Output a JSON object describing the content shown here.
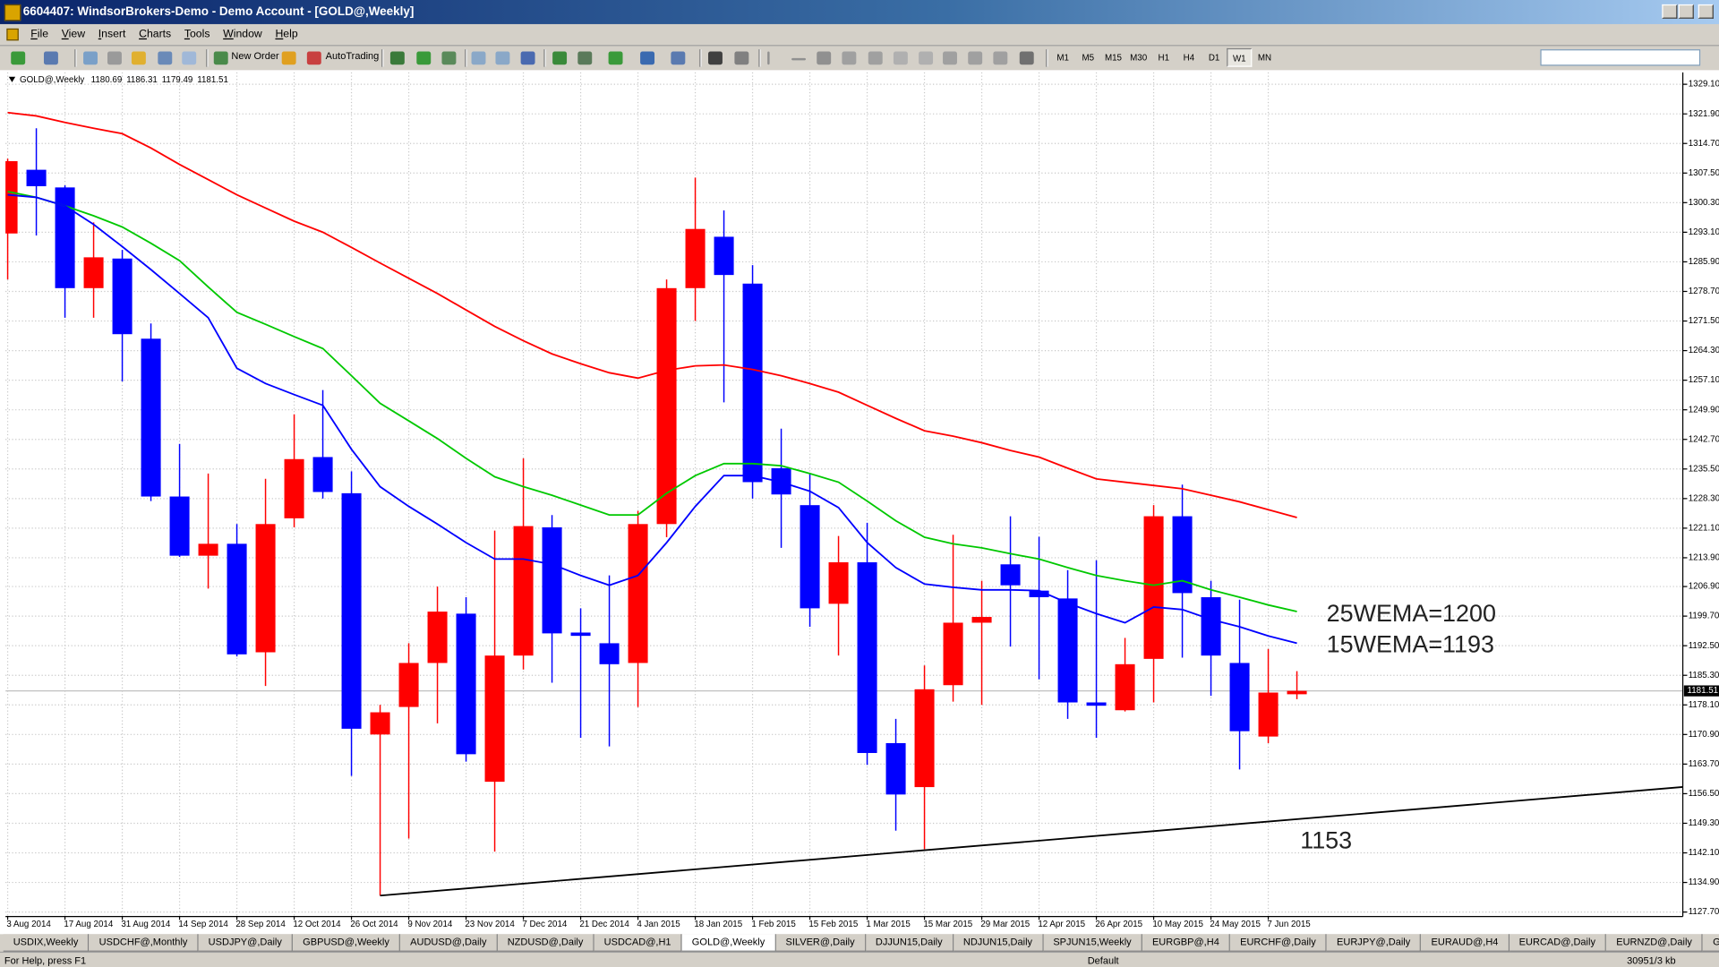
{
  "window": {
    "title": "6604407: WindsorBrokers-Demo - Demo Account - [GOLD@,Weekly]"
  },
  "menu": [
    "File",
    "View",
    "Insert",
    "Charts",
    "Tools",
    "Window",
    "Help"
  ],
  "toolbar": {
    "new_order": "New Order",
    "auto_trading": "AutoTrading",
    "timeframes": [
      {
        "label": "M1",
        "active": false
      },
      {
        "label": "M5",
        "active": false
      },
      {
        "label": "M15",
        "active": false
      },
      {
        "label": "M30",
        "active": false
      },
      {
        "label": "H1",
        "active": false
      },
      {
        "label": "H4",
        "active": false
      },
      {
        "label": "D1",
        "active": false
      },
      {
        "label": "W1",
        "active": true
      },
      {
        "label": "MN",
        "active": false
      }
    ]
  },
  "chart_data": {
    "type": "candlestick",
    "title": "GOLD@,Weekly",
    "categories": [
      "3 Aug 2014",
      null,
      "17 Aug 2014",
      null,
      "31 Aug 2014",
      null,
      "14 Sep 2014",
      null,
      "28 Sep 2014",
      null,
      "12 Oct 2014",
      null,
      "26 Oct 2014",
      null,
      "9 Nov 2014",
      null,
      "23 Nov 2014",
      null,
      "7 Dec 2014",
      null,
      "21 Dec 2014",
      null,
      "4 Jan 2015",
      null,
      "18 Jan 2015",
      null,
      "1 Feb 2015",
      null,
      "15 Feb 2015",
      null,
      "1 Mar 2015",
      null,
      "15 Mar 2015",
      null,
      "29 Mar 2015",
      null,
      "12 Apr 2015",
      null,
      "26 Apr 2015",
      null,
      "10 May 2015",
      null,
      "24 May 2015",
      null,
      "7 Jun 2015",
      null
    ],
    "open": [
      1292.8,
      1308.3,
      1304.0,
      1279.5,
      1286.7,
      1267.2,
      1228.8,
      1214.4,
      1217.3,
      1190.9,
      1223.5,
      1238.4,
      1229.6,
      1170.9,
      1177.6,
      1188.3,
      1200.3,
      1159.4,
      1190.1,
      1221.3,
      1195.7,
      1193.1,
      1188.3,
      1222.1,
      1279.5,
      1292.0,
      1280.6,
      1235.7,
      1226.7,
      1202.7,
      1212.8,
      1168.8,
      1158.1,
      1182.9,
      1198.1,
      1212.3,
      1205.9,
      1204.0,
      1178.7,
      1176.8,
      1189.3,
      1224.0,
      1204.3,
      1188.3,
      1170.4,
      1180.69
    ],
    "high": [
      1311.0,
      1318.4,
      1304.5,
      1295.5,
      1288.8,
      1270.9,
      1241.6,
      1234.4,
      1222.1,
      1233.1,
      1248.8,
      1254.7,
      1234.9,
      1178.1,
      1193.1,
      1206.9,
      1204.3,
      1220.5,
      1238.1,
      1224.3,
      1201.6,
      1209.6,
      1225.3,
      1281.6,
      1306.4,
      1298.4,
      1285.1,
      1245.3,
      1234.4,
      1219.2,
      1222.4,
      1174.7,
      1187.7,
      1219.5,
      1208.3,
      1224.0,
      1219.0,
      1210.9,
      1213.3,
      1194.4,
      1226.7,
      1231.7,
      1208.3,
      1203.7,
      1191.7,
      1186.31
    ],
    "low": [
      1281.6,
      1292.3,
      1272.3,
      1272.3,
      1256.8,
      1227.7,
      1214.1,
      1206.4,
      1189.9,
      1182.7,
      1221.3,
      1228.3,
      1160.8,
      1131.7,
      1145.6,
      1173.6,
      1164.3,
      1142.4,
      1186.7,
      1183.5,
      1170.1,
      1168.0,
      1177.6,
      1218.9,
      1271.5,
      1251.7,
      1228.3,
      1216.3,
      1197.1,
      1190.1,
      1163.5,
      1147.5,
      1143.0,
      1178.9,
      1178.1,
      1192.3,
      1184.3,
      1174.7,
      1170.1,
      1176.5,
      1178.7,
      1189.6,
      1180.3,
      1162.4,
      1168.8,
      1179.49
    ],
    "close": [
      1310.4,
      1304.3,
      1279.5,
      1287.0,
      1268.3,
      1228.8,
      1214.4,
      1217.3,
      1190.4,
      1222.1,
      1237.9,
      1229.9,
      1172.3,
      1176.3,
      1188.3,
      1200.8,
      1166.1,
      1190.1,
      1221.6,
      1195.5,
      1194.9,
      1188.0,
      1222.1,
      1279.5,
      1293.9,
      1282.7,
      1232.3,
      1229.3,
      1201.6,
      1212.8,
      1166.4,
      1156.3,
      1181.9,
      1198.1,
      1199.5,
      1207.2,
      1204.3,
      1178.7,
      1177.9,
      1188.0,
      1224.0,
      1205.3,
      1190.1,
      1171.7,
      1181.1,
      1181.51
    ],
    "up_color": "#ff0000",
    "down_color": "#0000ff",
    "lines": [
      {
        "color": "#ff0000",
        "values": [
          1322.2,
          1321.4,
          1319.8,
          1318.4,
          1317.1,
          1313.6,
          1309.6,
          1305.9,
          1302.2,
          1299.0,
          1295.8,
          1293.1,
          1289.4,
          1285.6,
          1281.9,
          1278.2,
          1274.2,
          1270.2,
          1266.7,
          1263.5,
          1261.1,
          1258.9,
          1257.6,
          1259.5,
          1260.6,
          1260.8,
          1259.7,
          1258.2,
          1256.3,
          1254.2,
          1251.0,
          1247.8,
          1244.8,
          1243.5,
          1241.9,
          1240.0,
          1238.4,
          1235.7,
          1233.1,
          1232.3,
          1231.5,
          1230.7,
          1229.1,
          1227.5,
          1225.6,
          1223.7
        ]
      },
      {
        "color": "#00c800",
        "values": [
          1303.0,
          1301.6,
          1299.5,
          1297.1,
          1294.4,
          1290.4,
          1286.2,
          1279.8,
          1273.6,
          1270.7,
          1267.7,
          1264.8,
          1258.2,
          1251.5,
          1247.2,
          1242.9,
          1238.1,
          1233.6,
          1231.2,
          1229.1,
          1226.7,
          1224.3,
          1224.3,
          1229.6,
          1233.9,
          1236.8,
          1236.8,
          1236.3,
          1234.4,
          1232.3,
          1227.7,
          1222.9,
          1218.9,
          1217.3,
          1216.3,
          1214.9,
          1213.6,
          1211.5,
          1209.6,
          1208.3,
          1207.2,
          1208.3,
          1206.1,
          1204.3,
          1202.4,
          1200.8
        ]
      },
      {
        "color": "#0000ff",
        "values": [
          1302.2,
          1301.6,
          1299.5,
          1295.0,
          1289.6,
          1284.0,
          1278.2,
          1272.3,
          1260.0,
          1256.3,
          1253.6,
          1251.0,
          1240.3,
          1231.2,
          1226.4,
          1222.1,
          1217.6,
          1213.6,
          1213.6,
          1212.3,
          1209.6,
          1207.2,
          1209.6,
          1217.6,
          1226.4,
          1233.9,
          1233.9,
          1232.3,
          1230.1,
          1226.1,
          1217.6,
          1211.5,
          1207.5,
          1206.7,
          1206.1,
          1206.1,
          1205.9,
          1202.9,
          1200.3,
          1198.1,
          1201.9,
          1201.3,
          1198.9,
          1197.1,
          1194.9,
          1193.1
        ]
      }
    ],
    "trend_line": [
      1131.7,
      1150.3
    ],
    "annotations": [
      "25WEMA=1200",
      "15WEMA=1193",
      "1153"
    ],
    "ylim": [
      1126.6,
      1332.0
    ],
    "yticks": [
      {
        "value": 1329.1,
        "label": "1329.10"
      },
      {
        "value": 1321.9,
        "label": "1321.90"
      },
      {
        "value": 1314.7,
        "label": "1314.70"
      },
      {
        "value": 1307.5,
        "label": "1307.50"
      },
      {
        "value": 1300.3,
        "label": "1300.30"
      },
      {
        "value": 1293.1,
        "label": "1293.10"
      },
      {
        "value": 1285.9,
        "label": "1285.90"
      },
      {
        "value": 1278.7,
        "label": "1278.70"
      },
      {
        "value": 1271.5,
        "label": "1271.50"
      },
      {
        "value": 1264.3,
        "label": "1264.30"
      },
      {
        "value": 1257.1,
        "label": "1257.10"
      },
      {
        "value": 1249.9,
        "label": "1249.90"
      },
      {
        "value": 1242.7,
        "label": "1242.70"
      },
      {
        "value": 1235.5,
        "label": "1235.50"
      },
      {
        "value": 1228.3,
        "label": "1228.30"
      },
      {
        "value": 1221.1,
        "label": "1221.10"
      },
      {
        "value": 1213.9,
        "label": "1213.90"
      },
      {
        "value": 1206.9,
        "label": "1206.90"
      },
      {
        "value": 1199.7,
        "label": "1199.70"
      },
      {
        "value": 1192.5,
        "label": "1192.50"
      },
      {
        "value": 1185.3,
        "label": "1185.30"
      },
      {
        "value": 1178.1,
        "label": "1178.10"
      },
      {
        "value": 1170.9,
        "label": "1170.90"
      },
      {
        "value": 1163.7,
        "label": "1163.70"
      },
      {
        "value": 1156.5,
        "label": "1156.50"
      },
      {
        "value": 1149.3,
        "label": "1149.30"
      },
      {
        "value": 1142.1,
        "label": "1142.10"
      },
      {
        "value": 1134.9,
        "label": "1134.90"
      },
      {
        "value": 1127.7,
        "label": "1127.70"
      }
    ],
    "grid": true
  },
  "tabs": [
    {
      "label": "USDIX,Weekly",
      "active": false
    },
    {
      "label": "USDCHF@,Monthly",
      "active": false
    },
    {
      "label": "USDJPY@,Daily",
      "active": false
    },
    {
      "label": "GBPUSD@,Weekly",
      "active": false
    },
    {
      "label": "AUDUSD@,Daily",
      "active": false
    },
    {
      "label": "NZDUSD@,Daily",
      "active": false
    },
    {
      "label": "USDCAD@,H1",
      "active": false
    },
    {
      "label": "GOLD@,Weekly",
      "active": true
    },
    {
      "label": "SILVER@,Daily",
      "active": false
    },
    {
      "label": "DJJUN15,Daily",
      "active": false
    },
    {
      "label": "NDJUN15,Daily",
      "active": false
    },
    {
      "label": "SPJUN15,Weekly",
      "active": false
    },
    {
      "label": "EURGBP@,H4",
      "active": false
    },
    {
      "label": "EURCHF@,Daily",
      "active": false
    },
    {
      "label": "EURJPY@,Daily",
      "active": false
    },
    {
      "label": "EURAUD@,H4",
      "active": false
    },
    {
      "label": "EURCAD@,Daily",
      "active": false
    },
    {
      "label": "EURNZD@,Daily",
      "active": false
    },
    {
      "label": "GBPJPY@,Monthly",
      "active": false
    }
  ],
  "status_bar": {
    "help": "For Help, press F1",
    "profile": "Default",
    "traffic": "30951/3 kb"
  }
}
